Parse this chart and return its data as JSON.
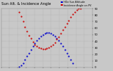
{
  "title": "Sun Alt. & Incidence Angle",
  "legend1": "HOz Sun Altitude",
  "legend2": "Incidence Angle on PV",
  "color1": "#0000cc",
  "color2": "#cc0000",
  "legend_color1": "#0000cc",
  "legend_color2": "#cc0000",
  "bg_color": "#c8c8c8",
  "plot_bg": "#c8c8c8",
  "grid_color": "#aaaaaa",
  "text_color": "#000000",
  "ylim": [
    0,
    90
  ],
  "xlim": [
    0,
    46
  ],
  "sun_altitude_x": [
    9,
    10,
    11,
    12,
    13,
    14,
    15,
    16,
    17,
    18,
    19,
    20,
    21,
    22,
    23,
    24,
    25,
    26,
    27,
    28,
    29,
    30,
    31,
    32,
    33,
    34,
    35,
    36
  ],
  "sun_altitude_y": [
    1,
    3,
    7,
    12,
    17,
    22,
    27,
    32,
    37,
    41,
    45,
    48,
    50,
    52,
    53,
    53,
    52,
    50,
    48,
    45,
    41,
    37,
    32,
    27,
    22,
    17,
    12,
    7
  ],
  "incidence_x": [
    9,
    10,
    11,
    12,
    13,
    14,
    15,
    16,
    17,
    18,
    19,
    20,
    21,
    22,
    23,
    24,
    25,
    26,
    27,
    28,
    29,
    30,
    31,
    32,
    33,
    34,
    35,
    36,
    37,
    38,
    39,
    40
  ],
  "incidence_y": [
    85,
    78,
    70,
    62,
    55,
    49,
    44,
    39,
    35,
    32,
    30,
    29,
    28,
    28,
    29,
    30,
    32,
    35,
    38,
    43,
    47,
    52,
    57,
    62,
    67,
    72,
    77,
    81,
    85,
    88,
    90,
    90
  ],
  "ytick_vals": [
    0,
    10,
    20,
    30,
    40,
    50,
    60,
    70,
    80,
    90
  ],
  "ytick_labels": [
    "0",
    "10",
    "20",
    "30",
    "40",
    "50",
    "60",
    "70",
    "80",
    "90"
  ],
  "xtick_count": 12,
  "marker_size": 1.2,
  "title_fontsize": 3.8,
  "tick_fontsize": 2.8,
  "legend_fontsize": 2.5
}
